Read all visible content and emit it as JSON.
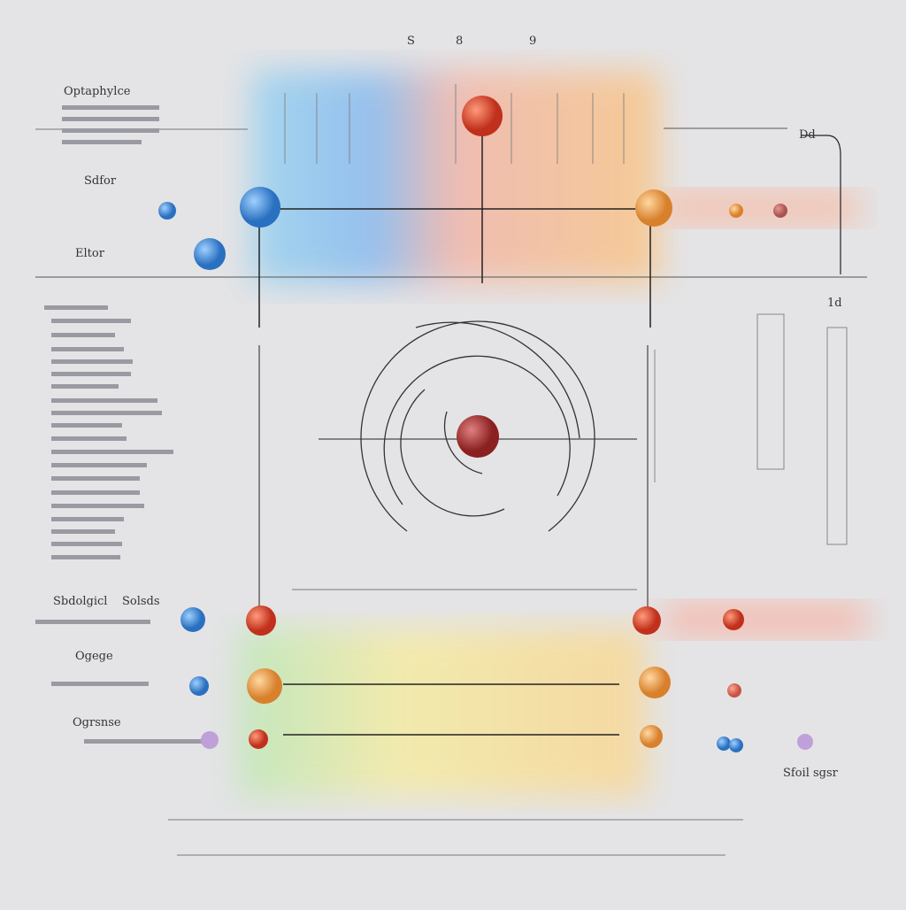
{
  "header": {
    "marks": [
      "S",
      "8",
      "9"
    ]
  },
  "labels": {
    "top_left": "Oрtарhуlсе",
    "row1": "Sdfor",
    "row2": "Eltor",
    "row3": "Sbdolgicl",
    "row3b": "Solsds",
    "row4": "Ogege",
    "row5": "Ogrsnse",
    "corner_right": "Sfoil sgsr",
    "num_top_right": "Dd",
    "num_right": "1d"
  }
}
